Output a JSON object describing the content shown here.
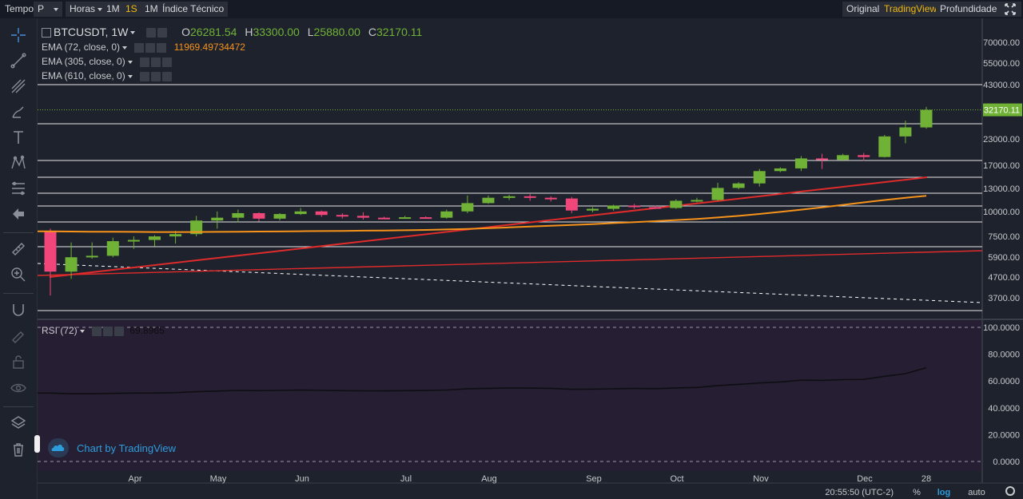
{
  "topbar": {
    "time_label": "Tempo",
    "period_value": "P",
    "hours_label": "Horas",
    "intervals": [
      "1M",
      "1S",
      "1M"
    ],
    "active_interval_index": 1,
    "indicators_label": "Índice Técnico",
    "views": [
      "Original",
      "TradingView",
      "Profundidade"
    ],
    "active_view_index": 1,
    "fullscreen_icon": "expand-icon"
  },
  "legend": {
    "symbol": "BTCUSDT, 1W",
    "o_label": "O",
    "open": "26281.54",
    "h_label": "H",
    "high": "33300.00",
    "l_label": "L",
    "low": "25880.00",
    "c_label": "C",
    "close": "32170.11",
    "ema1_label": "EMA (72, close, 0)",
    "ema1_value": "11969.49734472",
    "ema2_label": "EMA (305, close, 0)",
    "ema3_label": "EMA (610, close, 0)",
    "rsi_label": "RSI (72)",
    "rsi_value": "69.8965"
  },
  "watermark": "Chart by TradingView",
  "status": {
    "time": "20:55:50 (UTC-2)",
    "percent": "%",
    "log": "log",
    "auto": "auto"
  },
  "colors": {
    "up": "#70b236",
    "down": "#f0467a",
    "ema72": "#f7931a",
    "trend": "#e02b2b",
    "rsi": "#0e0e12",
    "accent": "#f0b90b",
    "last_price": "#70b236"
  },
  "chart_data": {
    "type": "candlestick",
    "scale": "log",
    "price_ticks": [
      "70000.00",
      "55000.00",
      "43000.00",
      "32170.11",
      "23000.00",
      "17000.00",
      "13000.00",
      "10000.00",
      "7500.00",
      "5900.00",
      "4700.00",
      "3700.00"
    ],
    "last_price": "32170.11",
    "x_labels": [
      "Apr",
      "May",
      "Jun",
      "Jul",
      "Aug",
      "Sep",
      "Oct",
      "Nov",
      "Dec",
      "28"
    ],
    "rsi_ticks": [
      "100.0000",
      "80.0000",
      "60.0000",
      "40.0000",
      "20.0000",
      "0.0000"
    ],
    "candles": [
      {
        "o": 8000,
        "h": 8200,
        "l": 3800,
        "c": 5000
      },
      {
        "o": 5000,
        "h": 7000,
        "l": 4600,
        "c": 5900
      },
      {
        "o": 5900,
        "h": 7000,
        "l": 5800,
        "c": 6000
      },
      {
        "o": 6000,
        "h": 7400,
        "l": 5900,
        "c": 7100
      },
      {
        "o": 7100,
        "h": 7500,
        "l": 6500,
        "c": 7200
      },
      {
        "o": 7200,
        "h": 7600,
        "l": 6700,
        "c": 7500
      },
      {
        "o": 7500,
        "h": 8000,
        "l": 6900,
        "c": 7700
      },
      {
        "o": 7700,
        "h": 9500,
        "l": 7500,
        "c": 9000
      },
      {
        "o": 9000,
        "h": 10000,
        "l": 8200,
        "c": 9300
      },
      {
        "o": 9300,
        "h": 10200,
        "l": 8800,
        "c": 9800
      },
      {
        "o": 9800,
        "h": 9900,
        "l": 8900,
        "c": 9200
      },
      {
        "o": 9200,
        "h": 9800,
        "l": 9000,
        "c": 9700
      },
      {
        "o": 9700,
        "h": 10400,
        "l": 9600,
        "c": 10000
      },
      {
        "o": 10000,
        "h": 10100,
        "l": 9400,
        "c": 9600
      },
      {
        "o": 9600,
        "h": 9800,
        "l": 9200,
        "c": 9500
      },
      {
        "o": 9500,
        "h": 9900,
        "l": 9100,
        "c": 9300
      },
      {
        "o": 9300,
        "h": 9400,
        "l": 9150,
        "c": 9250
      },
      {
        "o": 9250,
        "h": 9500,
        "l": 9200,
        "c": 9350
      },
      {
        "o": 9350,
        "h": 9450,
        "l": 9200,
        "c": 9300
      },
      {
        "o": 9300,
        "h": 10200,
        "l": 9200,
        "c": 10000
      },
      {
        "o": 10000,
        "h": 12000,
        "l": 9800,
        "c": 11000
      },
      {
        "o": 11000,
        "h": 12000,
        "l": 10900,
        "c": 11700
      },
      {
        "o": 11700,
        "h": 12100,
        "l": 11400,
        "c": 11900
      },
      {
        "o": 11900,
        "h": 12200,
        "l": 11300,
        "c": 11700
      },
      {
        "o": 11700,
        "h": 11900,
        "l": 11200,
        "c": 11600
      },
      {
        "o": 11600,
        "h": 11800,
        "l": 9800,
        "c": 10100
      },
      {
        "o": 10100,
        "h": 10500,
        "l": 9900,
        "c": 10300
      },
      {
        "o": 10300,
        "h": 10800,
        "l": 10100,
        "c": 10700
      },
      {
        "o": 10700,
        "h": 10900,
        "l": 10300,
        "c": 10500
      },
      {
        "o": 10500,
        "h": 10700,
        "l": 10300,
        "c": 10400
      },
      {
        "o": 10400,
        "h": 11500,
        "l": 10300,
        "c": 11300
      },
      {
        "o": 11300,
        "h": 11700,
        "l": 11100,
        "c": 11400
      },
      {
        "o": 11400,
        "h": 13900,
        "l": 11300,
        "c": 13100
      },
      {
        "o": 13100,
        "h": 14000,
        "l": 12900,
        "c": 13800
      },
      {
        "o": 13800,
        "h": 16300,
        "l": 13300,
        "c": 15900
      },
      {
        "o": 15900,
        "h": 16600,
        "l": 15700,
        "c": 16400
      },
      {
        "o": 16400,
        "h": 18900,
        "l": 15900,
        "c": 18400
      },
      {
        "o": 18400,
        "h": 19400,
        "l": 16300,
        "c": 18100
      },
      {
        "o": 18100,
        "h": 19400,
        "l": 17800,
        "c": 19100
      },
      {
        "o": 19100,
        "h": 19600,
        "l": 17900,
        "c": 18700
      },
      {
        "o": 18700,
        "h": 24100,
        "l": 18600,
        "c": 23700
      },
      {
        "o": 23700,
        "h": 28400,
        "l": 21900,
        "c": 26300
      },
      {
        "o": 26281.54,
        "h": 33300,
        "l": 25880,
        "c": 32170.11
      }
    ],
    "ema72": [
      7950,
      7930,
      7920,
      7910,
      7900,
      7890,
      7885,
      7890,
      7900,
      7920,
      7930,
      7940,
      7960,
      7975,
      7990,
      8010,
      8030,
      8050,
      8080,
      8120,
      8170,
      8240,
      8320,
      8400,
      8480,
      8560,
      8640,
      8740,
      8840,
      8940,
      9050,
      9170,
      9320,
      9500,
      9710,
      9940,
      10200,
      10480,
      10780,
      11090,
      11400,
      11700,
      11969
    ],
    "rsi": [
      51,
      50.5,
      50.5,
      50.8,
      51,
      51,
      51.3,
      52,
      52.5,
      53,
      52.8,
      53,
      53.3,
      53,
      52.8,
      52.7,
      52.6,
      52.8,
      52.9,
      53.3,
      54.2,
      54.5,
      54.8,
      54.7,
      54.5,
      53.8,
      53.9,
      54.2,
      54.4,
      54.3,
      54.8,
      55.2,
      56.6,
      57.5,
      58.5,
      59.3,
      60.6,
      60.5,
      61,
      61.2,
      63.5,
      65.5,
      69.9
    ]
  }
}
